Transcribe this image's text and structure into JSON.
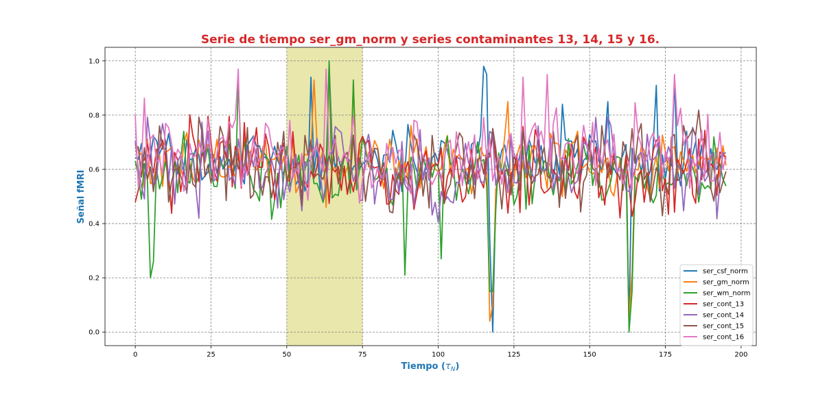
{
  "chart_data": {
    "type": "line",
    "title": "Serie de tiempo ser_gm_norm y series contaminantes 13, 14, 15 y 16.",
    "xlabel": "Tiempo (τ_N)",
    "xlabel_main": "Tiempo (",
    "xlabel_tau": "τ",
    "xlabel_sub": "N",
    "xlabel_close": ")",
    "ylabel": "Señal fMRI",
    "xlim": [
      -10,
      205
    ],
    "ylim": [
      -0.05,
      1.05
    ],
    "xticks": [
      0,
      25,
      50,
      75,
      100,
      125,
      150,
      175,
      200
    ],
    "yticks": [
      0.0,
      0.2,
      0.4,
      0.6,
      0.8,
      1.0
    ],
    "grid": true,
    "legend_position": "lower-right",
    "highlight_span": {
      "x0": 50,
      "x1": 75,
      "color": "#e8e6a8"
    },
    "n_points": 196,
    "series": [
      {
        "name": "ser_csf_norm",
        "color": "#1f77b4",
        "seed": 11,
        "mean": 0.63,
        "amp": 0.13,
        "spikes": [
          [
            58,
            0.94
          ],
          [
            64,
            0.99
          ],
          [
            115,
            0.98
          ],
          [
            116,
            0.95
          ],
          [
            117,
            0.35
          ],
          [
            118,
            0.0
          ],
          [
            119,
            0.5
          ],
          [
            163,
            0.02
          ],
          [
            141,
            0.84
          ],
          [
            156,
            0.85
          ],
          [
            172,
            0.91
          ],
          [
            178,
            0.93
          ]
        ]
      },
      {
        "name": "ser_gm_norm",
        "color": "#ff7f0e",
        "seed": 23,
        "mean": 0.62,
        "amp": 0.14,
        "spikes": [
          [
            59,
            0.93
          ],
          [
            64,
            0.99
          ],
          [
            117,
            0.04
          ],
          [
            118,
            0.1
          ],
          [
            163,
            0.05
          ],
          [
            164,
            0.22
          ],
          [
            72,
            0.92
          ],
          [
            123,
            0.85
          ]
        ]
      },
      {
        "name": "ser_wm_norm",
        "color": "#2ca02c",
        "seed": 37,
        "mean": 0.58,
        "amp": 0.15,
        "spikes": [
          [
            5,
            0.2
          ],
          [
            6,
            0.26
          ],
          [
            34,
            0.92
          ],
          [
            64,
            1.0
          ],
          [
            72,
            0.93
          ],
          [
            89,
            0.21
          ],
          [
            101,
            0.27
          ],
          [
            117,
            0.15
          ],
          [
            118,
            0.15
          ],
          [
            163,
            0.0
          ],
          [
            164,
            0.15
          ]
        ]
      },
      {
        "name": "ser_cont_13",
        "color": "#d62728",
        "seed": 41,
        "mean": 0.6,
        "amp": 0.2,
        "spikes": []
      },
      {
        "name": "ser_cont_14",
        "color": "#9467bd",
        "seed": 53,
        "mean": 0.6,
        "amp": 0.2,
        "spikes": []
      },
      {
        "name": "ser_cont_15",
        "color": "#8c564b",
        "seed": 67,
        "mean": 0.62,
        "amp": 0.2,
        "spikes": []
      },
      {
        "name": "ser_cont_16",
        "color": "#e377c2",
        "seed": 79,
        "mean": 0.66,
        "amp": 0.2,
        "spikes": [
          [
            34,
            0.97
          ],
          [
            63,
            0.97
          ],
          [
            128,
            0.94
          ],
          [
            136,
            0.95
          ],
          [
            178,
            0.95
          ]
        ]
      }
    ]
  }
}
